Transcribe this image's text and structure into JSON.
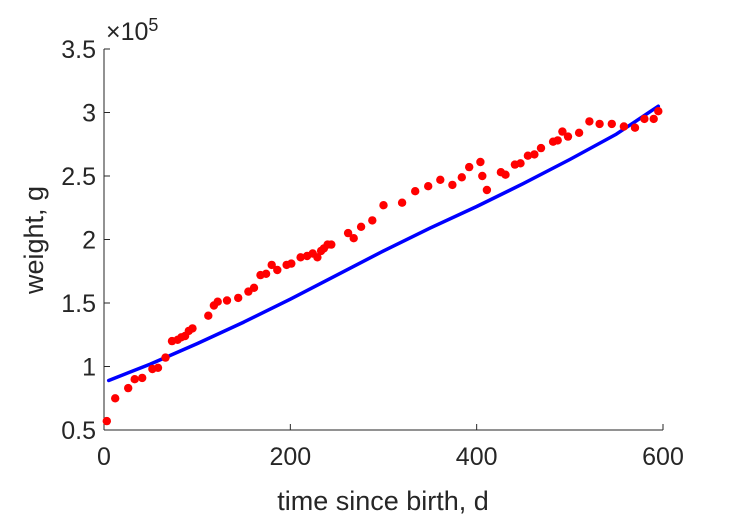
{
  "chart_data": {
    "type": "scatter",
    "title": "",
    "xlabel": "time since birth, d",
    "ylabel": "weight, g",
    "xlim": [
      0,
      600
    ],
    "ylim": [
      50000,
      350000
    ],
    "x_ticks": [
      0,
      200,
      400,
      600
    ],
    "x_tick_labels": [
      "0",
      "200",
      "400",
      "600"
    ],
    "y_ticks": [
      50000,
      100000,
      150000,
      200000,
      250000,
      300000,
      350000
    ],
    "y_tick_labels": [
      "0.5",
      "1",
      "1.5",
      "2",
      "2.5",
      "3",
      "3.5"
    ],
    "y_exponent": {
      "prefix": "×10",
      "power": "5"
    },
    "grid": false,
    "legend": "none",
    "series": [
      {
        "kind": "scatter",
        "color": "#ff0000",
        "x": [
          3,
          12,
          26,
          33,
          41,
          52,
          58,
          66,
          73,
          79,
          83,
          87,
          91,
          95,
          112,
          118,
          122,
          132,
          144,
          155,
          161,
          168,
          174,
          180,
          186,
          196,
          201,
          211,
          218,
          224,
          229,
          233,
          236,
          240,
          244,
          262,
          268,
          276,
          288,
          300,
          320,
          334,
          348,
          361,
          374,
          384,
          392,
          404,
          406,
          411,
          426,
          431,
          441,
          447,
          455,
          462,
          469,
          482,
          487,
          492,
          498,
          510,
          521,
          532,
          545,
          558,
          570,
          580,
          590,
          595
        ],
        "y": [
          57000,
          75000,
          83000,
          90000,
          91000,
          98000,
          99000,
          107000,
          120000,
          121000,
          123000,
          124000,
          128000,
          130000,
          140000,
          148000,
          151000,
          152000,
          154000,
          159000,
          162000,
          172000,
          173000,
          180000,
          176000,
          180000,
          181000,
          186000,
          187000,
          189000,
          186000,
          191000,
          193000,
          196000,
          196000,
          205000,
          201000,
          210000,
          215000,
          227000,
          229000,
          238000,
          242000,
          247000,
          243000,
          249000,
          257000,
          261000,
          250000,
          239000,
          253000,
          251000,
          259000,
          260000,
          266000,
          267000,
          272000,
          277000,
          278000,
          285000,
          281000,
          284000,
          293000,
          291000,
          291000,
          289000,
          288000,
          295000,
          295000,
          301000
        ]
      },
      {
        "kind": "line",
        "color": "#0000ff",
        "x": [
          5,
          50,
          100,
          150,
          200,
          250,
          300,
          350,
          400,
          450,
          500,
          550,
          595
        ],
        "y": [
          89000,
          102000,
          118000,
          135000,
          153000,
          172000,
          191000,
          209000,
          226000,
          244000,
          263000,
          283000,
          305000
        ]
      }
    ]
  }
}
